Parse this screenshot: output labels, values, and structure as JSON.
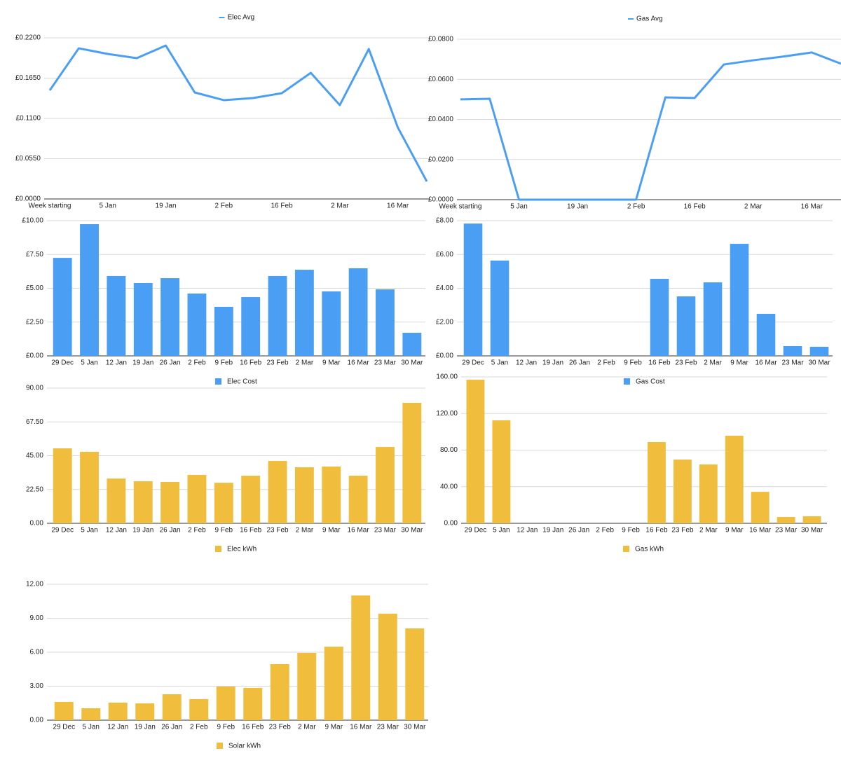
{
  "chart_data": [
    {
      "type": "line",
      "legend": "top",
      "categories": [
        "Week starting",
        null,
        "5 Jan",
        null,
        "19 Jan",
        null,
        "2 Feb",
        null,
        "16 Feb",
        null,
        "2 Mar",
        null,
        "16 Mar",
        null
      ],
      "series": [
        {
          "name": "Elec Avg",
          "color": "#4a9ff5",
          "values": [
            0.1483,
            0.2057,
            0.198,
            0.1923,
            0.2095,
            0.1454,
            0.1349,
            0.1377,
            0.1444,
            0.1722,
            0.1282,
            0.2047,
            0.0976,
            0.0239
          ]
        }
      ],
      "ylim": [
        0,
        0.22
      ],
      "yticks": [
        {
          "value": 0,
          "label": "£0.0000"
        },
        {
          "value": 0.055,
          "label": "£0.0550"
        },
        {
          "value": 0.11,
          "label": "£0.1100"
        },
        {
          "value": 0.165,
          "label": "£0.1650"
        },
        {
          "value": 0.22,
          "label": "£0.2200"
        }
      ],
      "grid": true
    },
    {
      "type": "line",
      "legend": "top",
      "categories": [
        "Week starting",
        null,
        "5 Jan",
        null,
        "19 Jan",
        null,
        "2 Feb",
        null,
        "16 Feb",
        null,
        "2 Mar",
        null,
        "16 Mar",
        null
      ],
      "series": [
        {
          "name": "Gas Avg",
          "color": "#4a9ff5",
          "values": [
            0.05,
            0.0503,
            0,
            0,
            0,
            0,
            0,
            0.051,
            0.0507,
            0.0674,
            0.0695,
            0.0713,
            0.0734,
            0.0678
          ]
        }
      ],
      "ylim": [
        0,
        0.08
      ],
      "yticks": [
        {
          "value": 0,
          "label": "£0.0000"
        },
        {
          "value": 0.02,
          "label": "£0.0200"
        },
        {
          "value": 0.04,
          "label": "£0.0400"
        },
        {
          "value": 0.06,
          "label": "£0.0600"
        },
        {
          "value": 0.08,
          "label": "£0.0800"
        }
      ],
      "grid": true
    },
    {
      "type": "bar",
      "legend": "bottom",
      "categories": [
        "29 Dec",
        "5 Jan",
        "12 Jan",
        "19 Jan",
        "26 Jan",
        "2 Feb",
        "9 Feb",
        "16 Feb",
        "23 Feb",
        "2 Mar",
        "9 Mar",
        "16 Mar",
        "23 Mar",
        "30 Mar"
      ],
      "series": [
        {
          "name": "Elec Cost",
          "color": "#4a9ff5",
          "values": [
            7.25,
            9.74,
            5.91,
            5.39,
            5.75,
            4.61,
            3.63,
            4.35,
            5.91,
            6.37,
            4.77,
            6.48,
            4.92,
            1.71
          ]
        }
      ],
      "ylim": [
        0,
        10
      ],
      "yticks": [
        {
          "value": 0,
          "label": "£0.00"
        },
        {
          "value": 2.5,
          "label": "£2.50"
        },
        {
          "value": 5,
          "label": "£5.00"
        },
        {
          "value": 7.5,
          "label": "£7.50"
        },
        {
          "value": 10,
          "label": "£10.00"
        }
      ],
      "grid": true
    },
    {
      "type": "bar",
      "legend": "bottom",
      "categories": [
        "29 Dec",
        "5 Jan",
        "12 Jan",
        "19 Jan",
        "26 Jan",
        "2 Feb",
        "9 Feb",
        "16 Feb",
        "23 Feb",
        "2 Mar",
        "9 Mar",
        "16 Mar",
        "23 Mar",
        "30 Mar"
      ],
      "series": [
        {
          "name": "Gas Cost",
          "color": "#4a9ff5",
          "values": [
            7.83,
            5.64,
            0,
            0,
            0,
            0,
            0,
            4.56,
            3.52,
            4.35,
            6.63,
            2.49,
            0.58,
            0.54
          ]
        }
      ],
      "ylim": [
        0,
        8
      ],
      "yticks": [
        {
          "value": 0,
          "label": "£0.00"
        },
        {
          "value": 2,
          "label": "£2.00"
        },
        {
          "value": 4,
          "label": "£4.00"
        },
        {
          "value": 6,
          "label": "£6.00"
        },
        {
          "value": 8,
          "label": "£8.00"
        }
      ],
      "grid": true
    },
    {
      "type": "bar",
      "legend": "bottom",
      "categories": [
        "29 Dec",
        "5 Jan",
        "12 Jan",
        "19 Jan",
        "26 Jan",
        "2 Feb",
        "9 Feb",
        "16 Feb",
        "23 Feb",
        "2 Mar",
        "9 Mar",
        "16 Mar",
        "23 Mar",
        "30 Mar"
      ],
      "series": [
        {
          "name": "Elec kWh",
          "color": "#f0bd3c",
          "values": [
            49.9,
            47.6,
            29.8,
            28.0,
            27.5,
            32.2,
            27.0,
            31.7,
            41.5,
            37.3,
            37.8,
            31.7,
            50.8,
            80.2
          ]
        }
      ],
      "ylim": [
        0,
        90
      ],
      "yticks": [
        {
          "value": 0,
          "label": "0.00"
        },
        {
          "value": 22.5,
          "label": "22.50"
        },
        {
          "value": 45,
          "label": "45.00"
        },
        {
          "value": 67.5,
          "label": "67.50"
        },
        {
          "value": 90,
          "label": "90.00"
        }
      ],
      "grid": true
    },
    {
      "type": "bar",
      "legend": "bottom",
      "categories": [
        "29 Dec",
        "5 Jan",
        "12 Jan",
        "19 Jan",
        "26 Jan",
        "2 Feb",
        "9 Feb",
        "16 Feb",
        "23 Feb",
        "2 Mar",
        "9 Mar",
        "16 Mar",
        "23 Mar",
        "30 Mar"
      ],
      "series": [
        {
          "name": "Gas kWh",
          "color": "#f0bd3c",
          "values": [
            156.9,
            112.5,
            0,
            0,
            0,
            0,
            0,
            88.8,
            69.7,
            64.3,
            95.7,
            34.4,
            6.9,
            7.7
          ]
        }
      ],
      "ylim": [
        0,
        160
      ],
      "yticks": [
        {
          "value": 0,
          "label": "0.00"
        },
        {
          "value": 40,
          "label": "40.00"
        },
        {
          "value": 80,
          "label": "80.00"
        },
        {
          "value": 120,
          "label": "120.00"
        },
        {
          "value": 160,
          "label": "160.00"
        }
      ],
      "grid": true
    },
    {
      "type": "bar",
      "legend": "bottom",
      "categories": [
        "29 Dec",
        "5 Jan",
        "12 Jan",
        "19 Jan",
        "26 Jan",
        "2 Feb",
        "9 Feb",
        "16 Feb",
        "23 Feb",
        "2 Mar",
        "9 Mar",
        "16 Mar",
        "23 Mar",
        "30 Mar"
      ],
      "series": [
        {
          "name": "Solar kWh",
          "color": "#f0bd3c",
          "values": [
            1.61,
            1.05,
            1.55,
            1.48,
            2.29,
            1.86,
            2.97,
            2.85,
            4.95,
            5.94,
            6.49,
            11.01,
            9.4,
            8.1
          ]
        }
      ],
      "ylim": [
        0,
        12
      ],
      "yticks": [
        {
          "value": 0,
          "label": "0.00"
        },
        {
          "value": 3,
          "label": "3.00"
        },
        {
          "value": 6,
          "label": "6.00"
        },
        {
          "value": 9,
          "label": "9.00"
        },
        {
          "value": 12,
          "label": "12.00"
        }
      ],
      "grid": true
    }
  ]
}
